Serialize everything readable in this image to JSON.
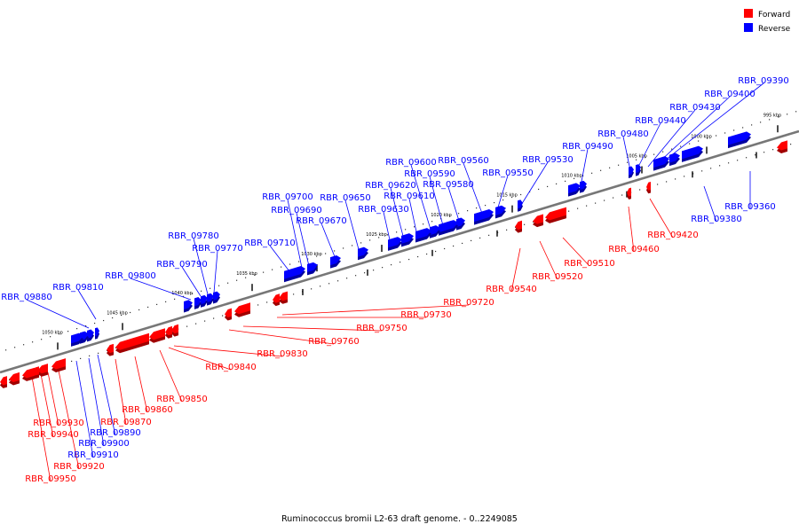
{
  "title": "Ruminococcus bromii L2-63 draft genome. - 0..2249085",
  "legend": [
    {
      "label": "Forward",
      "color": "#ff0000"
    },
    {
      "label": "Reverse",
      "color": "#0000ff"
    }
  ],
  "ticks": [
    "995 kbp",
    "1000 kbp",
    "1005 kbp",
    "1010 kbp",
    "1015 kbp",
    "1020 kbp",
    "1025 kbp",
    "1030 kbp",
    "1035 kbp",
    "1040 kbp",
    "1045 kbp",
    "1050 kbp"
  ],
  "reverse_genes": [
    "RBR_09360",
    "RBR_09380",
    "RBR_09390",
    "RBR_09400",
    "RBR_09430",
    "RBR_09440",
    "RBR_09480",
    "RBR_09490",
    "RBR_09530",
    "RBR_09550",
    "RBR_09560",
    "RBR_09580",
    "RBR_09590",
    "RBR_09600",
    "RBR_09610",
    "RBR_09620",
    "RBR_09630",
    "RBR_09650",
    "RBR_09670",
    "RBR_09690",
    "RBR_09700",
    "RBR_09710",
    "RBR_09770",
    "RBR_09780",
    "RBR_09790",
    "RBR_09800",
    "RBR_09810",
    "RBR_09880",
    "RBR_09890",
    "RBR_09900",
    "RBR_09910"
  ],
  "forward_genes": [
    "RBR_09420",
    "RBR_09460",
    "RBR_09510",
    "RBR_09520",
    "RBR_09540",
    "RBR_09720",
    "RBR_09730",
    "RBR_09750",
    "RBR_09760",
    "RBR_09830",
    "RBR_09840",
    "RBR_09850",
    "RBR_09860",
    "RBR_09870",
    "RBR_09920",
    "RBR_09930",
    "RBR_09940",
    "RBR_09950"
  ]
}
